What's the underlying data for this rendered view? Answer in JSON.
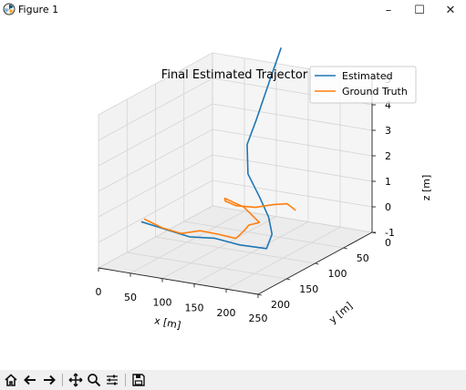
{
  "window": {
    "title": "Figure 1",
    "minimize_glyph": "–",
    "maximize_glyph": "☐",
    "close_glyph": "✕"
  },
  "toolbar": {
    "items": [
      "home-icon",
      "back-arrow-icon",
      "forward-arrow-icon",
      "pan-icon",
      "zoom-icon",
      "configure-subplots-icon",
      "save-icon"
    ]
  },
  "chart_data": {
    "type": "line3d",
    "title": "Final Estimated Trajector",
    "xlabel": "x [m]",
    "ylabel": "y [m]",
    "zlabel": "z [m]",
    "xticks": [
      "0",
      "50",
      "100",
      "150",
      "200",
      "250"
    ],
    "yticks": [
      "0",
      "50",
      "100",
      "150",
      "200"
    ],
    "zticks": [
      "-1",
      "0",
      "1",
      "2",
      "3",
      "4",
      "5"
    ],
    "xlim": [
      0,
      250
    ],
    "ylim": [
      0,
      200
    ],
    "zlim": [
      -1,
      5
    ],
    "grid": true,
    "legend_position": "top-right",
    "series": [
      {
        "name": "Estimated",
        "color": "#1f77b4",
        "points": [
          [
            0,
            125,
            -0.1
          ],
          [
            40,
            125,
            -0.25
          ],
          [
            80,
            130,
            -0.3
          ],
          [
            110,
            120,
            -0.35
          ],
          [
            150,
            120,
            -0.45
          ],
          [
            190,
            118,
            -0.45
          ],
          [
            196,
            115,
            0.1
          ],
          [
            188,
            112,
            0.7
          ],
          [
            172,
            110,
            1.4
          ],
          [
            152,
            108,
            2.2
          ],
          [
            148,
            105,
            3.3
          ],
          [
            160,
            102,
            4.3
          ],
          [
            178,
            100,
            5.8
          ],
          [
            195,
            98,
            7.2
          ]
        ]
      },
      {
        "name": "Ground Truth",
        "color": "#ff7f0e",
        "points": [
          [
            0,
            120,
            -0.05
          ],
          [
            30,
            122,
            -0.25
          ],
          [
            60,
            122,
            -0.35
          ],
          [
            85,
            117,
            -0.2
          ],
          [
            112,
            115,
            -0.25
          ],
          [
            142,
            118,
            -0.25
          ],
          [
            150,
            114,
            0.0
          ],
          [
            148,
            102,
            0.1
          ],
          [
            152,
            88,
            0.05
          ],
          [
            128,
            88,
            0.55
          ],
          [
            105,
            96,
            0.9
          ],
          [
            120,
            112,
            1.05
          ],
          [
            140,
            116,
            1.0
          ],
          [
            162,
            106,
            0.9
          ],
          [
            180,
            95,
            0.95
          ],
          [
            192,
            84,
            0.9
          ],
          [
            200,
            78,
            0.6
          ]
        ]
      }
    ]
  }
}
